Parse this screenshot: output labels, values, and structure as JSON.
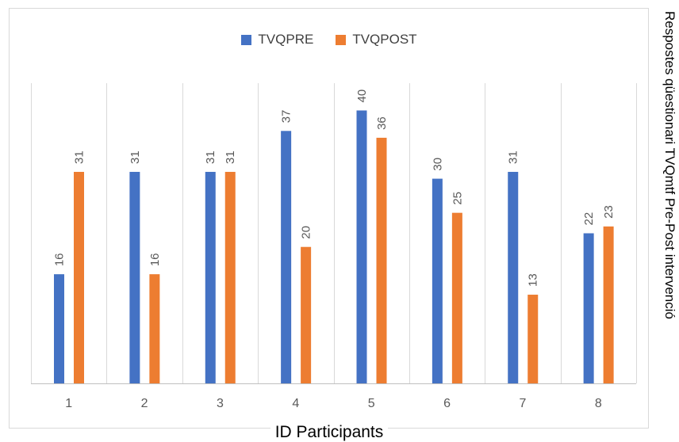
{
  "chart_data": {
    "type": "bar",
    "title": "",
    "categories": [
      "1",
      "2",
      "3",
      "4",
      "5",
      "6",
      "7",
      "8"
    ],
    "series": [
      {
        "name": "TVQPRE",
        "values": [
          16,
          31,
          31,
          37,
          40,
          30,
          31,
          22
        ],
        "color": "#4472c4"
      },
      {
        "name": "TVQPOST",
        "values": [
          31,
          16,
          31,
          20,
          36,
          25,
          13,
          23
        ],
        "color": "#ed7d31"
      }
    ],
    "xlabel": "ID Participants",
    "ylabel": "Respostes qüestionari TVQmtf Pre-Post intervenció",
    "ylim": [
      0,
      44
    ],
    "grid": "vertical-category-dividers",
    "legend_position": "top"
  }
}
